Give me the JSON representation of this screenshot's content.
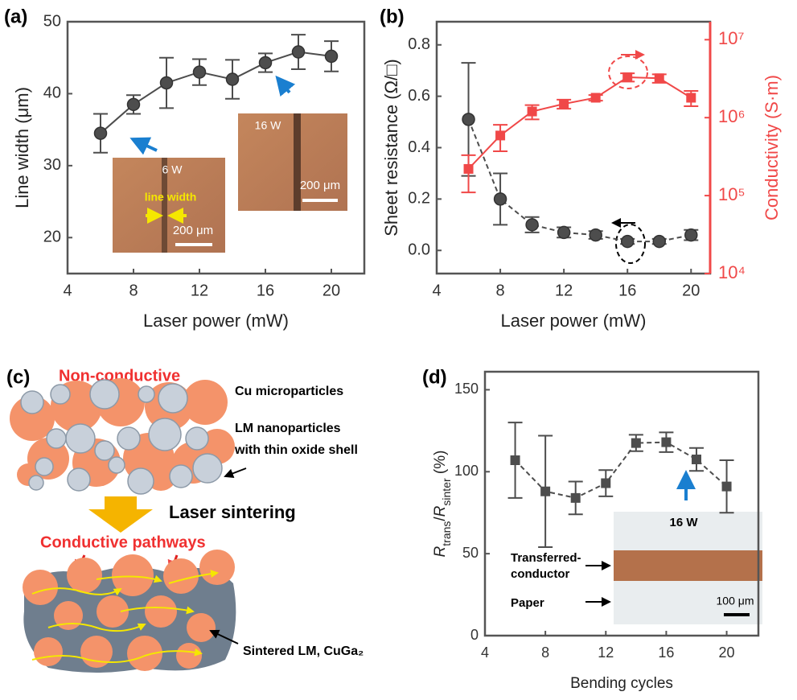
{
  "chart_data": [
    {
      "label": "(a)",
      "type": "line",
      "x": [
        6,
        8,
        10,
        12,
        14,
        16,
        18,
        20
      ],
      "xlim": [
        4,
        22
      ],
      "xticks": [
        4,
        8,
        12,
        16,
        20
      ],
      "ylim": [
        15,
        50
      ],
      "yticks": [
        20,
        30,
        40,
        50
      ],
      "xlabel": "Laser power (mW)",
      "ylabel": "Line width (μm)",
      "series": [
        {
          "color": "#4d4d4d",
          "marker": "circle",
          "dashed": false,
          "values": [
            34.5,
            38.5,
            41.5,
            43,
            42,
            44.3,
            45.8,
            45.2
          ],
          "errors": [
            2.7,
            1.3,
            3.5,
            1.8,
            2.7,
            1.3,
            2.4,
            2.1
          ]
        }
      ],
      "annotations": [
        "6 W",
        "line width",
        "200 μm",
        "16 W",
        "200 μm"
      ]
    },
    {
      "label": "(b)",
      "type": "line",
      "x": [
        6,
        8,
        10,
        12,
        14,
        16,
        18,
        20
      ],
      "xlim": [
        4,
        21.2
      ],
      "xticks": [
        4,
        8,
        12,
        16,
        20
      ],
      "ylim": [
        -0.09,
        0.89
      ],
      "yticks": [
        {
          "value": 0,
          "label": "0.0"
        },
        0.2,
        0.4,
        0.6,
        0.8
      ],
      "y2lim": [
        10000,
        17000000
      ],
      "y2scale": "log",
      "y2color": "#f04848",
      "y2ticks": [
        {
          "value": 10000,
          "label": "10⁴"
        },
        {
          "value": 100000,
          "label": "10⁵"
        },
        {
          "value": 1000000,
          "label": "10⁶"
        },
        {
          "value": 10000000,
          "label": "10⁷"
        }
      ],
      "xlabel": "Laser power (mW)",
      "ylabel": "Sheet resistance (Ω/□)",
      "y2label": "Conductivity (S·m)",
      "series": [
        {
          "color": "#4d4d4d",
          "marker": "circle",
          "dashed": true,
          "values": [
            0.51,
            0.2,
            0.1,
            0.07,
            0.06,
            0.035,
            0.035,
            0.06
          ],
          "errors": [
            0.22,
            0.1,
            0.03,
            0.02,
            0.015,
            0.01,
            0.01,
            0.02
          ]
        },
        {
          "color": "#f04848",
          "marker": "square",
          "dashed": false,
          "axis": "y2",
          "values": [
            220000,
            590000,
            1200000,
            1500000,
            1800000,
            3300000,
            3200000,
            1800000
          ],
          "errors": [
            110000,
            220000,
            250000,
            200000,
            150000,
            400000,
            400000,
            400000
          ]
        }
      ]
    },
    {
      "label": "(d)",
      "type": "line",
      "x": [
        6,
        8,
        10,
        12,
        14,
        16,
        18,
        20
      ],
      "xlim": [
        4,
        22.1
      ],
      "xticks": [
        4,
        8,
        12,
        16,
        20
      ],
      "ylim": [
        0,
        161
      ],
      "yticks": [
        0,
        50,
        100,
        150
      ],
      "xlabel": "Bending cycles",
      "ylabel": {
        "r1": "R",
        "sub1": "trans",
        "slash": "/",
        "r2": "R",
        "sub2": "sinter",
        "unit": " (%)"
      },
      "series": [
        {
          "color": "#4d4d4d",
          "marker": "square",
          "dashed": true,
          "values": [
            107,
            88,
            84,
            93,
            117.5,
            118,
            107.5,
            91
          ],
          "errors": [
            23,
            34,
            10,
            8,
            5,
            6,
            7,
            16
          ]
        }
      ],
      "annotations": [
        "16 W",
        "Transferred-",
        "conductor",
        "Paper",
        "100 μm"
      ]
    }
  ],
  "diagram": {
    "label": "(c)",
    "top_title": "Non-conductive",
    "cu": "Cu microparticles",
    "lm1": "LM nanoparticles",
    "lm2": "with thin oxide shell",
    "process": "Laser sintering",
    "bottom_title": "Conductive pathways",
    "sintered": "Sintered LM, CuGa₂"
  }
}
